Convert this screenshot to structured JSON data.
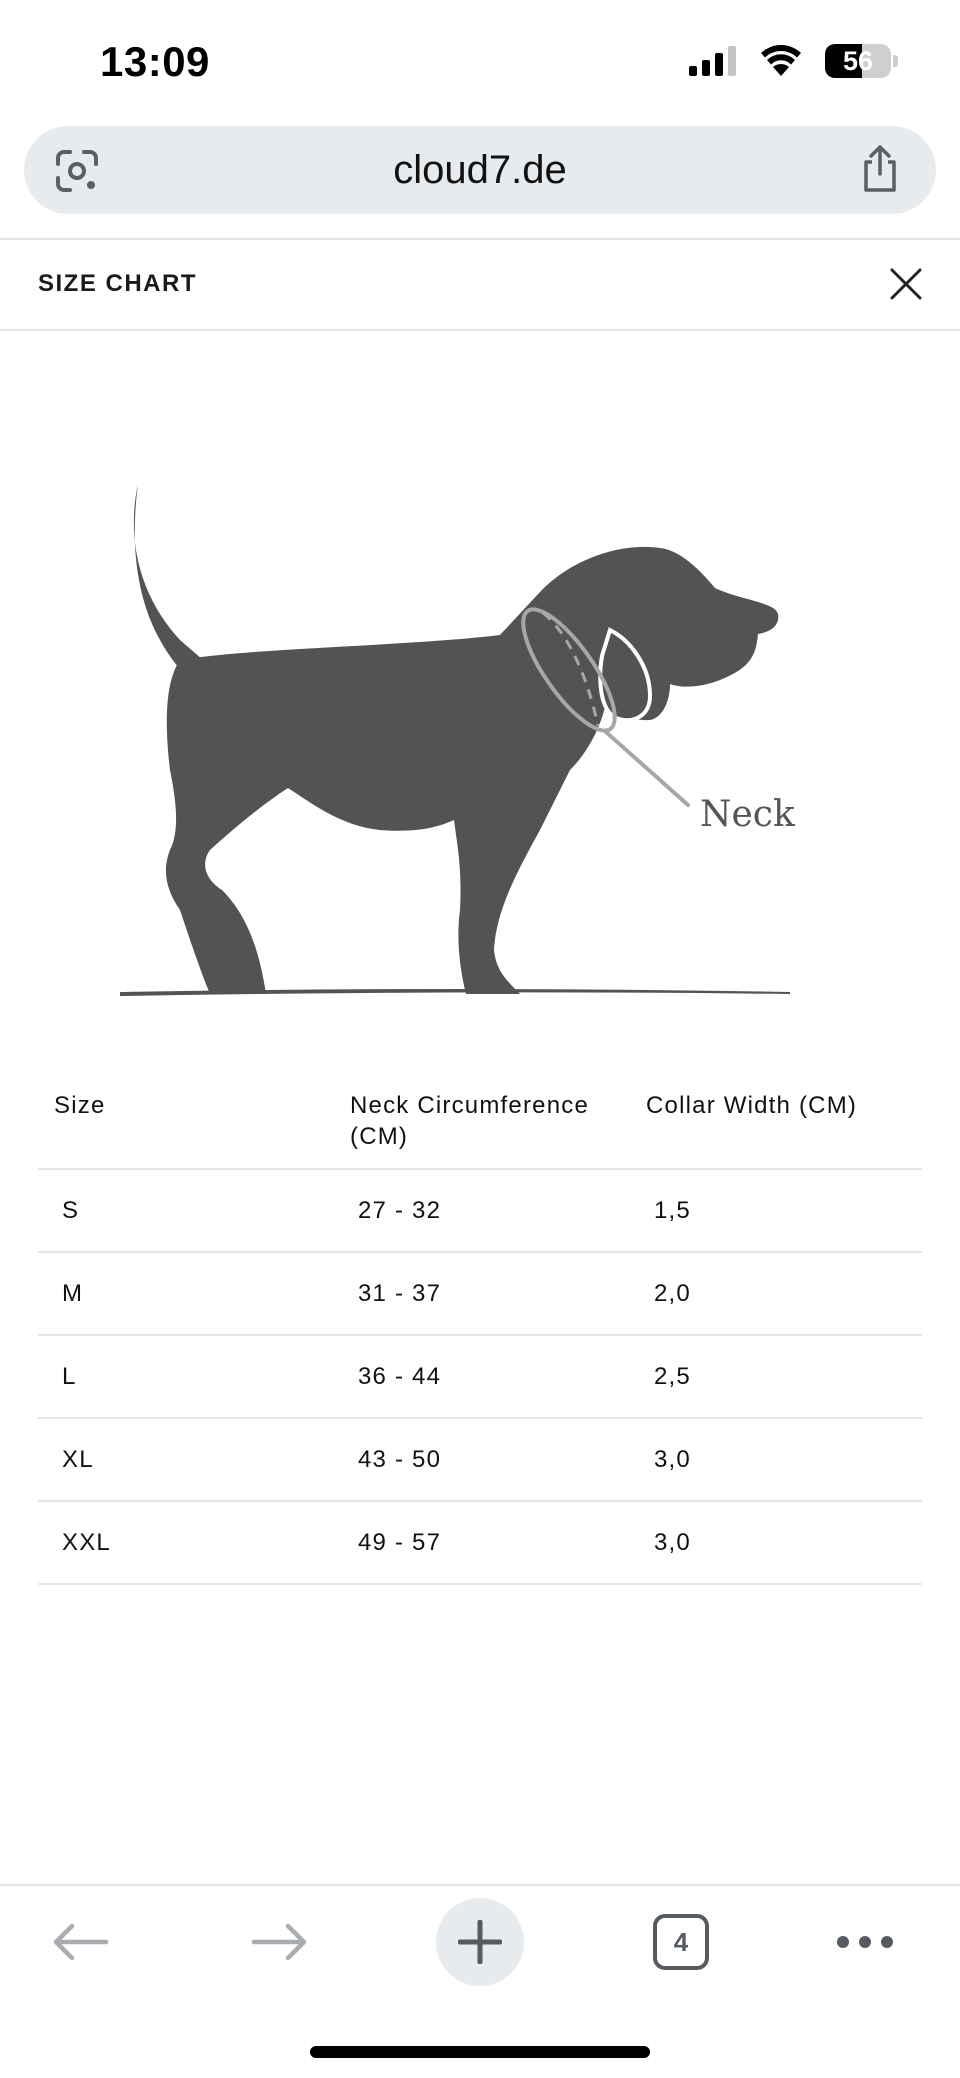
{
  "status_bar": {
    "time": "13:09",
    "battery_level": "56",
    "battery_fraction": 0.56
  },
  "browser": {
    "url": "cloud7.de",
    "icons": {
      "lens": "google-lens-icon",
      "share": "share-icon"
    }
  },
  "size_chart": {
    "title": "SIZE CHART",
    "close_icon": "close-icon",
    "illustration": {
      "label": "Neck",
      "body_color": "#535353",
      "marker_color": "#a7a7a7"
    },
    "columns": [
      "Size",
      "Neck Circumference (CM)",
      "Collar Width (CM)"
    ],
    "rows": [
      {
        "size": "S",
        "neck": "27 - 32",
        "width": "1,5"
      },
      {
        "size": "M",
        "neck": "31 - 37",
        "width": "2,0"
      },
      {
        "size": "L",
        "neck": "36 - 44",
        "width": "2,5"
      },
      {
        "size": "XL",
        "neck": "43 - 50",
        "width": "3,0"
      },
      {
        "size": "XXL",
        "neck": "49 - 57",
        "width": "3,0"
      }
    ]
  },
  "toolbar": {
    "open_tabs_count": "4",
    "icons": [
      "back-arrow-icon",
      "forward-arrow-icon",
      "plus-icon",
      "tabs-icon",
      "more-icon"
    ]
  }
}
